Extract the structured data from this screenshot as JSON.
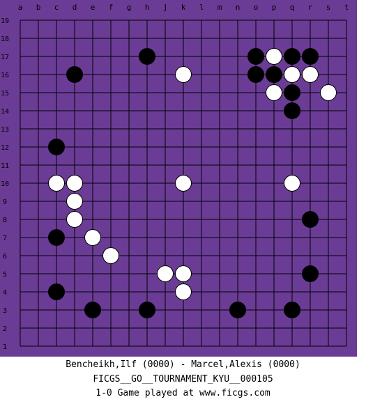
{
  "board": {
    "size": 19,
    "colors": {
      "frame": "#6a3c96",
      "grid": "#000000",
      "black_stone": "#000000",
      "white_stone": "#ffffff",
      "label": "#000000"
    },
    "column_labels": [
      "a",
      "b",
      "c",
      "d",
      "e",
      "f",
      "g",
      "h",
      "j",
      "k",
      "l",
      "m",
      "n",
      "o",
      "p",
      "q",
      "r",
      "s",
      "t"
    ],
    "row_labels": [
      "19",
      "18",
      "17",
      "16",
      "15",
      "14",
      "13",
      "12",
      "11",
      "10",
      "9",
      "8",
      "7",
      "6",
      "5",
      "4",
      "3",
      "2",
      "1"
    ],
    "stones": [
      {
        "color": "black",
        "point": "h17"
      },
      {
        "color": "black",
        "point": "o17"
      },
      {
        "color": "white",
        "point": "p17"
      },
      {
        "color": "black",
        "point": "q17"
      },
      {
        "color": "black",
        "point": "r17"
      },
      {
        "color": "black",
        "point": "d16"
      },
      {
        "color": "white",
        "point": "k16"
      },
      {
        "color": "black",
        "point": "o16"
      },
      {
        "color": "black",
        "point": "p16"
      },
      {
        "color": "white",
        "point": "q16"
      },
      {
        "color": "white",
        "point": "r16"
      },
      {
        "color": "white",
        "point": "p15"
      },
      {
        "color": "black",
        "point": "q15"
      },
      {
        "color": "white",
        "point": "s15"
      },
      {
        "color": "black",
        "point": "q14"
      },
      {
        "color": "black",
        "point": "c12"
      },
      {
        "color": "white",
        "point": "c10"
      },
      {
        "color": "white",
        "point": "d10"
      },
      {
        "color": "white",
        "point": "k10"
      },
      {
        "color": "white",
        "point": "q10"
      },
      {
        "color": "white",
        "point": "d9"
      },
      {
        "color": "white",
        "point": "d8"
      },
      {
        "color": "black",
        "point": "r8"
      },
      {
        "color": "black",
        "point": "c7"
      },
      {
        "color": "white",
        "point": "e7"
      },
      {
        "color": "white",
        "point": "f6"
      },
      {
        "color": "white",
        "point": "j5"
      },
      {
        "color": "white",
        "point": "k5"
      },
      {
        "color": "black",
        "point": "r5"
      },
      {
        "color": "black",
        "point": "c4"
      },
      {
        "color": "white",
        "point": "k4"
      },
      {
        "color": "black",
        "point": "e3"
      },
      {
        "color": "black",
        "point": "h3"
      },
      {
        "color": "black",
        "point": "n3"
      },
      {
        "color": "black",
        "point": "q3"
      }
    ]
  },
  "footer": {
    "players": "Bencheikh,Ilf (0000) - Marcel,Alexis (0000)",
    "tournament": "FICGS__GO__TOURNAMENT_KYU__000105",
    "result": "1-0    Game played at www.ficgs.com"
  }
}
